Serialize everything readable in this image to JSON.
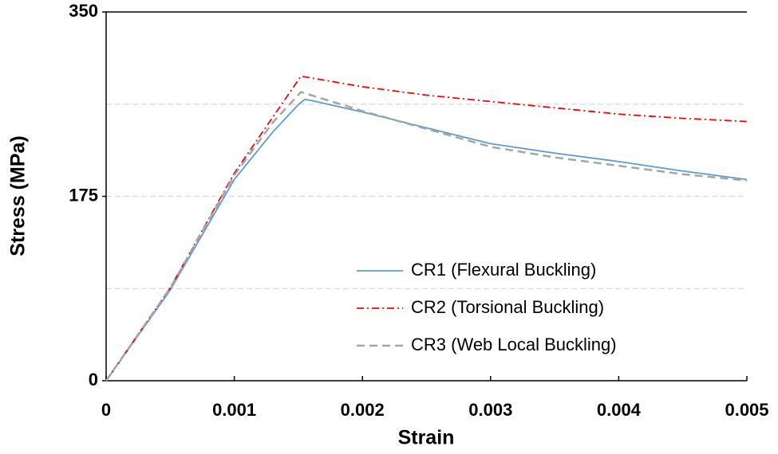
{
  "chart_data": {
    "type": "line",
    "xlabel": "Strain",
    "ylabel": "Stress (MPa)",
    "xlim": [
      0,
      0.005
    ],
    "xticks": [
      0,
      0.001,
      0.002,
      0.003,
      0.004,
      0.005
    ],
    "ylim": [
      0,
      350
    ],
    "yticks": [
      0,
      175,
      350
    ],
    "ygrid": [
      87.5,
      175,
      262.5
    ],
    "legend": "lower right",
    "series": [
      {
        "name": "CR1 (Flexural Buckling)",
        "color": "#5b9bd5",
        "dash": "solid",
        "x": [
          0,
          0.0005,
          0.001,
          0.0013,
          0.0015,
          0.00155,
          0.0016,
          0.002,
          0.0025,
          0.003,
          0.0035,
          0.004,
          0.0045,
          0.005
        ],
        "values": [
          0,
          86,
          191,
          236,
          262,
          267,
          266,
          255,
          240,
          225,
          216,
          208,
          199,
          191
        ]
      },
      {
        "name": "CR2 (Torsional Buckling)",
        "color": "#ff0000",
        "dash": "dashdot",
        "x": [
          0,
          0.0005,
          0.001,
          0.0013,
          0.00152,
          0.002,
          0.0025,
          0.003,
          0.0035,
          0.004,
          0.0045,
          0.005
        ],
        "values": [
          0,
          88,
          197,
          250,
          289,
          279,
          271,
          265,
          259,
          253,
          249,
          246
        ]
      },
      {
        "name": "CR3 (Web Local Buckling)",
        "color": "#a5a5a5",
        "dash": "dash",
        "x": [
          0,
          0.0005,
          0.001,
          0.0013,
          0.00152,
          0.002,
          0.0025,
          0.003,
          0.0035,
          0.004,
          0.0045,
          0.005
        ],
        "values": [
          0,
          88,
          195,
          245,
          274,
          256,
          239,
          222,
          212,
          204,
          196,
          190
        ]
      }
    ]
  }
}
